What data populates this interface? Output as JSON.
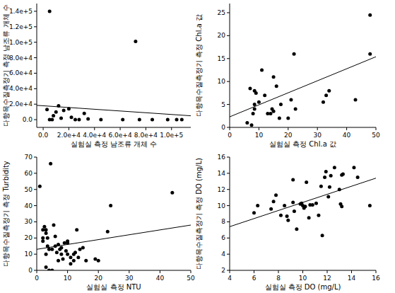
{
  "chart_data": [
    {
      "type": "scatter",
      "x_label": "실험실 측정 남조류 개체 수",
      "y_label": "다항목수질측정기 측정 남조류 개체 수",
      "xlim": [
        -5000,
        115000
      ],
      "ylim": [
        -10000,
        150000
      ],
      "xticks": [
        {
          "value": 0,
          "label": "0.0"
        },
        {
          "value": 20000,
          "label": "2.0e+4"
        },
        {
          "value": 40000,
          "label": "4.0e+4"
        },
        {
          "value": 60000,
          "label": "6.0e+4"
        },
        {
          "value": 80000,
          "label": "8.0e+4"
        },
        {
          "value": 100000,
          "label": "1.0e+5"
        }
      ],
      "yticks": [
        {
          "value": 0,
          "label": "0.0"
        },
        {
          "value": 20000,
          "label": "2.0e+4"
        },
        {
          "value": 40000,
          "label": "4.0e+4"
        },
        {
          "value": 60000,
          "label": "6.0e+4"
        },
        {
          "value": 80000,
          "label": "8.0e+4"
        },
        {
          "value": 100000,
          "label": "1.0e+5"
        },
        {
          "value": 120000,
          "label": "1.2e+5"
        },
        {
          "value": 140000,
          "label": "1.4e+5"
        }
      ],
      "series": [
        {
          "type": "scatter",
          "color": "#000000",
          "marker": "circle",
          "x": [
            3000,
            5000,
            5000,
            7000,
            8000,
            10000,
            12000,
            14000,
            16000,
            20000,
            22000,
            25000,
            28000,
            32000,
            35000,
            45000,
            62000,
            72000,
            75000,
            85000,
            97000,
            104000,
            108000
          ],
          "values": [
            13000,
            140000,
            0,
            0,
            5000,
            10000,
            18000,
            2000,
            12000,
            14000,
            3000,
            0,
            0,
            8000,
            1000,
            0,
            0,
            101000,
            0,
            0,
            0,
            0,
            0
          ]
        },
        {
          "type": "line",
          "color": "#000000",
          "line_style": "solid",
          "x": [
            -5000,
            115000
          ],
          "values": [
            18500,
            5000
          ]
        }
      ]
    },
    {
      "type": "scatter",
      "x_label": "실험실 측정 Chl.a 값",
      "y_label": "다항목수질측정기 측정 Chl.a 값",
      "xlim": [
        0,
        50
      ],
      "ylim": [
        0,
        27
      ],
      "xticks": [
        0,
        10,
        20,
        30,
        40,
        50
      ],
      "yticks": [
        0,
        5,
        10,
        15,
        20,
        25
      ],
      "series": [
        {
          "type": "scatter",
          "color": "#000000",
          "marker": "circle",
          "x": [
            6,
            7,
            7.5,
            8,
            8.5,
            8.5,
            8.5,
            9,
            10,
            11,
            12,
            13,
            14,
            14.5,
            15,
            15,
            16,
            17,
            17.5,
            20,
            21,
            22,
            22.5,
            32,
            33,
            34,
            43,
            48,
            48
          ],
          "values": [
            1,
            8.5,
            0.5,
            3,
            4,
            5,
            8,
            7.5,
            5.5,
            12.5,
            7,
            3,
            3,
            4,
            3.5,
            11,
            9,
            2,
            5,
            2,
            6,
            16,
            4,
            5.5,
            7,
            8,
            6,
            16,
            24.5
          ]
        },
        {
          "type": "line",
          "color": "#000000",
          "line_style": "solid",
          "x": [
            0,
            50
          ],
          "values": [
            2.3,
            15.4
          ]
        }
      ]
    },
    {
      "type": "scatter",
      "x_label": "실험실 측정 NTU",
      "y_label": "다항목수질측정기 측정 Turbidity",
      "xlim": [
        0,
        50
      ],
      "ylim": [
        0,
        70
      ],
      "xticks": [
        0,
        10,
        20,
        30,
        40,
        50
      ],
      "yticks": [
        0,
        10,
        20,
        30,
        40,
        50,
        60,
        70
      ],
      "series": [
        {
          "type": "scatter",
          "color": "#000000",
          "marker": "circle",
          "x": [
            1,
            2,
            2,
            2,
            2.5,
            3,
            3,
            3,
            3,
            3.5,
            3.5,
            4,
            4,
            4.5,
            5,
            5,
            5.5,
            6,
            6,
            6.5,
            7,
            7,
            7.5,
            8,
            8,
            8.5,
            9,
            9.5,
            10,
            10,
            10,
            11,
            11,
            12,
            12,
            12.5,
            13,
            13.5,
            14,
            15,
            16,
            19,
            20,
            23,
            24,
            44
          ],
          "values": [
            52,
            20,
            25,
            18,
            27,
            2,
            10,
            25,
            23,
            20,
            15,
            0,
            13,
            66,
            0,
            13,
            28,
            15,
            21,
            11,
            6,
            16,
            13,
            10,
            14,
            7,
            17,
            12,
            17,
            18,
            10,
            8,
            4,
            6,
            10,
            11,
            25,
            8,
            13,
            14,
            6,
            7,
            6,
            24,
            40,
            48
          ]
        },
        {
          "type": "line",
          "color": "#000000",
          "line_style": "solid",
          "x": [
            0,
            50
          ],
          "values": [
            13,
            28
          ]
        }
      ]
    },
    {
      "type": "scatter",
      "x_label": "실험실 측정 DO (mg/L)",
      "y_label": "다항목수질측정기 측정 DO (mg/L)",
      "xlim": [
        4,
        16
      ],
      "ylim": [
        2,
        16
      ],
      "xticks": [
        4,
        6,
        8,
        10,
        12,
        14,
        16
      ],
      "yticks": [
        2,
        4,
        6,
        8,
        10,
        12,
        14,
        16
      ],
      "series": [
        {
          "type": "scatter",
          "color": "#000000",
          "marker": "circle",
          "x": [
            6,
            6.3,
            7.4,
            7.6,
            7.8,
            8.2,
            8.5,
            8.7,
            8.8,
            9.2,
            9.2,
            9.3,
            9.5,
            9.8,
            9.9,
            10,
            10.1,
            10.2,
            10.3,
            10.5,
            10.6,
            10.8,
            11.1,
            11.3,
            11.5,
            11.6,
            11.8,
            11.9,
            12.1,
            12.2,
            12.3,
            12.6,
            13,
            13.1,
            13.2,
            13.2,
            13.3,
            14.2,
            14.5,
            15.5
          ],
          "values": [
            9.1,
            10,
            9.6,
            10.5,
            11.3,
            8.8,
            10,
            8.7,
            8.2,
            13.2,
            10.4,
            9.3,
            7.1,
            10.2,
            10.3,
            10,
            9.7,
            9.9,
            12.9,
            8.5,
            10.1,
            10.1,
            10.3,
            8.8,
            12.4,
            6.3,
            13.5,
            14.2,
            11.1,
            12.3,
            13.7,
            14.7,
            12,
            10.2,
            13.8,
            9.9,
            13.9,
            14.7,
            13.5,
            10
          ]
        },
        {
          "type": "line",
          "color": "#000000",
          "line_style": "solid",
          "x": [
            4,
            16
          ],
          "values": [
            7.4,
            13.4
          ]
        }
      ]
    }
  ]
}
